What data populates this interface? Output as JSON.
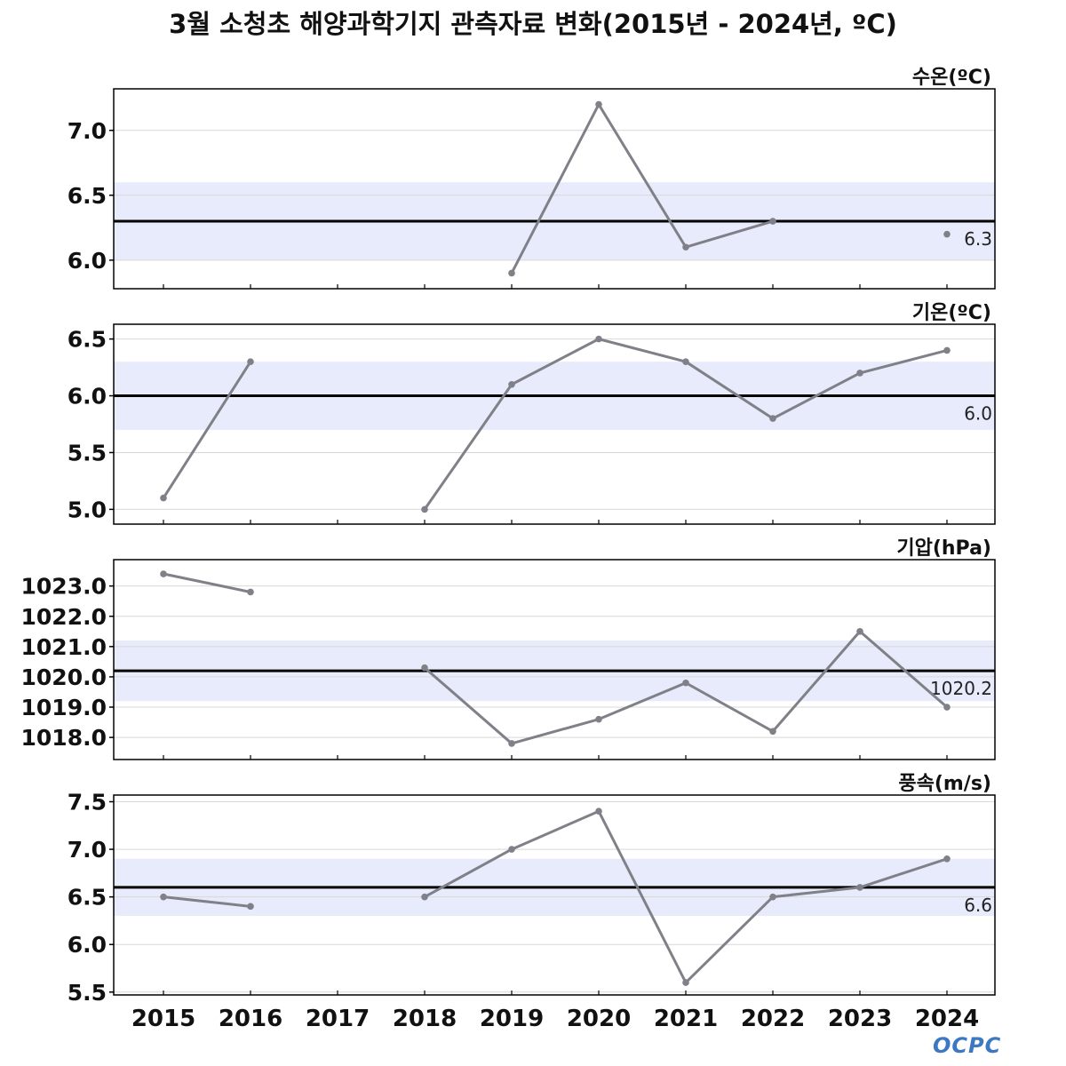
{
  "chart_data": {
    "title": "3월 소청초 해양과학기지 관측자료 변화(2015년 - 2024년, ºC)",
    "type": "line",
    "x": [
      "2015",
      "2016",
      "2017",
      "2018",
      "2019",
      "2020",
      "2021",
      "2022",
      "2023",
      "2024"
    ],
    "panels": [
      {
        "label": "수온(ºC)",
        "values": [
          null,
          null,
          null,
          null,
          5.9,
          7.2,
          6.1,
          6.3,
          null,
          6.2
        ],
        "mean": 6.3,
        "mean_label": "6.3",
        "band": [
          6.0,
          6.6
        ],
        "ylim": [
          5.78,
          7.32
        ],
        "ticks": [
          6.0,
          6.5,
          7.0
        ],
        "tick_labels": [
          "6.0",
          "6.5",
          "7.0"
        ]
      },
      {
        "label": "기온(ºC)",
        "values": [
          5.1,
          6.3,
          null,
          5.0,
          6.1,
          6.5,
          6.3,
          5.8,
          6.2,
          6.4
        ],
        "mean": 6.0,
        "mean_label": "6.0",
        "band": [
          5.7,
          6.3
        ],
        "ylim": [
          4.87,
          6.63
        ],
        "ticks": [
          5.0,
          5.5,
          6.0,
          6.5
        ],
        "tick_labels": [
          "5.0",
          "5.5",
          "6.0",
          "6.5"
        ]
      },
      {
        "label": "기압(hPa)",
        "values": [
          1023.4,
          1022.8,
          null,
          1020.3,
          1017.8,
          1018.6,
          1019.8,
          1018.2,
          1021.5,
          1019.0
        ],
        "mean": 1020.2,
        "mean_label": "1020.2",
        "band": [
          1019.2,
          1021.2
        ],
        "ylim": [
          1017.27,
          1023.87
        ],
        "ticks": [
          1018.0,
          1019.0,
          1020.0,
          1021.0,
          1022.0,
          1023.0
        ],
        "tick_labels": [
          "1018.0",
          "1019.0",
          "1020.0",
          "1021.0",
          "1022.0",
          "1023.0"
        ]
      },
      {
        "label": "풍속(m/s)",
        "values": [
          6.5,
          6.4,
          null,
          6.5,
          7.0,
          7.4,
          5.6,
          6.5,
          6.6,
          6.9
        ],
        "mean": 6.6,
        "mean_label": "6.6",
        "band": [
          6.3,
          6.9
        ],
        "ylim": [
          5.47,
          7.57
        ],
        "ticks": [
          5.5,
          6.0,
          6.5,
          7.0,
          7.5
        ],
        "tick_labels": [
          "5.5",
          "6.0",
          "6.5",
          "7.0",
          "7.5"
        ]
      }
    ],
    "colors": {
      "line": "#808088",
      "mean": "#000000",
      "band": "#e8ebfb",
      "grid": "#d8d8d8"
    }
  },
  "watermark": "OCPC"
}
